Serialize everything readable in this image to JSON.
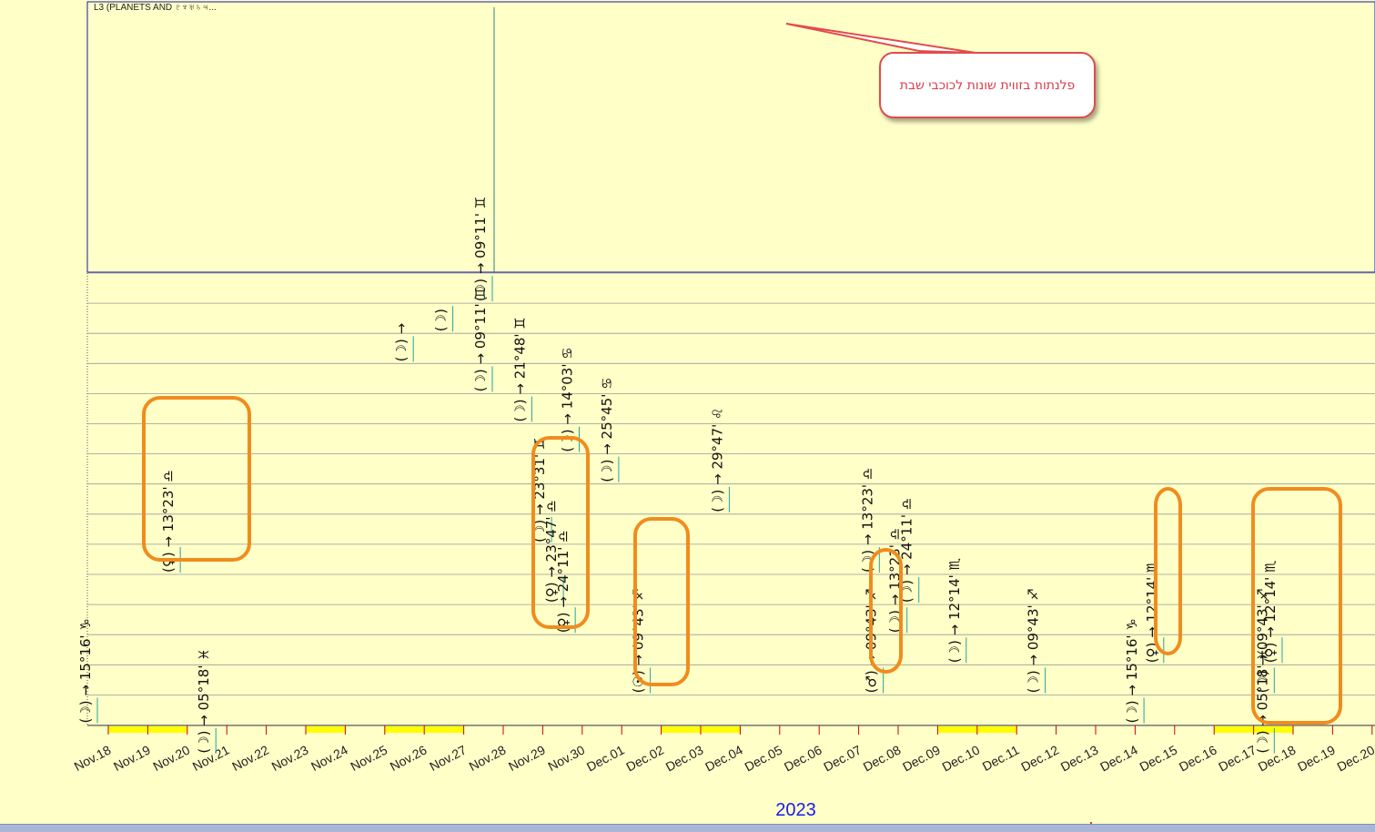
{
  "window": {
    "panel_title": "L3  (PLANETS AND ♇♆♅♄♃...",
    "callout_text": "פלנתות בזווית שונות לכוכבי שבת",
    "year": "2023"
  },
  "colors": {
    "background": "#ffffc8",
    "grid_line": "#9a9a9a",
    "axis_line": "#1a1aaa",
    "weekend_band": "#ffff00",
    "tick_red": "#cc0000",
    "highlight_box": "#f08c1e",
    "callout_border": "#e24b4b",
    "callout_text": "#d93b4a",
    "year_text": "#1a1aee"
  },
  "chart_data": {
    "type": "timeline",
    "x_dates": [
      "Nov.18",
      "Nov.19",
      "Nov.20",
      "Nov.21",
      "Nov.22",
      "Nov.23",
      "Nov.24",
      "Nov.25",
      "Nov.26",
      "Nov.27",
      "Nov.28",
      "Nov.29",
      "Nov.30",
      "Dec.01",
      "Dec.02",
      "Dec.03",
      "Dec.04",
      "Dec.05",
      "Dec.06",
      "Dec.07",
      "Dec.08",
      "Dec.09",
      "Dec.10",
      "Dec.11",
      "Dec.12",
      "Dec.13",
      "Dec.14",
      "Dec.15",
      "Dec.16",
      "Dec.17",
      "Dec.18",
      "Dec.19",
      "Dec.20"
    ],
    "weekend_bands": [
      [
        0,
        2
      ],
      [
        5,
        6
      ],
      [
        7,
        9
      ],
      [
        14,
        16
      ],
      [
        21,
        23
      ],
      [
        28,
        30
      ]
    ],
    "rows": 15,
    "events": [
      {
        "day": 0.0,
        "row": 14,
        "text": "(☽) → 15°16' ♑"
      },
      {
        "day": 3.0,
        "row": 15,
        "text": "(☽) → 05°18' ♓"
      },
      {
        "day": 2.1,
        "row": 9,
        "text": "(♀) → 13°23' ♎"
      },
      {
        "day": 8.0,
        "row": 2,
        "text": "(☽) →"
      },
      {
        "day": 9.0,
        "row": 1,
        "text": "(☽)"
      },
      {
        "day": 10.0,
        "row": 3,
        "text": "(☽) → 09°11' ♊"
      },
      {
        "day": 10.0,
        "row": 0,
        "text": "(☽) → 09°11' ♊"
      },
      {
        "day": 11.0,
        "row": 4,
        "text": "(☽) → 21°48' ♊"
      },
      {
        "day": 11.5,
        "row": 8,
        "text": "(☽) → 23°31' ♊"
      },
      {
        "day": 11.8,
        "row": 10,
        "text": "(♀) → 23°47' ♎"
      },
      {
        "day": 12.1,
        "row": 11,
        "text": "(♀) → 24°11' ♎"
      },
      {
        "day": 12.2,
        "row": 5,
        "text": "(☽) → 14°03' ♋"
      },
      {
        "day": 13.2,
        "row": 6,
        "text": "(☽) → 25°45' ♋"
      },
      {
        "day": 14.0,
        "row": 13,
        "text": "(☉) → 09°43' ♐"
      },
      {
        "day": 16.0,
        "row": 7,
        "text": "(☽) → 29°47' ♌"
      },
      {
        "day": 19.8,
        "row": 9,
        "text": "(☽) → 13°23' ♎"
      },
      {
        "day": 19.9,
        "row": 13,
        "text": "(♂) → 09°43' ♐"
      },
      {
        "day": 20.5,
        "row": 11,
        "text": "(☽) → 13°23' ♎"
      },
      {
        "day": 20.8,
        "row": 10,
        "text": "(☽) → 24°11' ♎"
      },
      {
        "day": 22.0,
        "row": 12,
        "text": "(☽) → 12°14' ♏"
      },
      {
        "day": 24.0,
        "row": 13,
        "text": "(☽) → 09°43' ♐"
      },
      {
        "day": 26.5,
        "row": 14,
        "text": "(☽) → 15°16' ♑"
      },
      {
        "day": 27.0,
        "row": 12,
        "text": "(♀) → 12°14' ♏"
      },
      {
        "day": 30.0,
        "row": 12,
        "text": "(♀) → 12°14' ♏"
      },
      {
        "day": 29.8,
        "row": 15,
        "text": "(☽) → 05°18' ♓"
      },
      {
        "day": 29.8,
        "row": 13,
        "text": "(☽) → 09°43' ♐"
      }
    ],
    "highlight_boxes": [
      {
        "label": "venus-libra-box"
      },
      {
        "label": "venus-libra-box-2"
      },
      {
        "label": "sun-sagittarius-box"
      },
      {
        "label": "mars-sagittarius-box"
      },
      {
        "label": "venus-scorpio-box"
      },
      {
        "label": "multi-aspect-box"
      }
    ]
  }
}
